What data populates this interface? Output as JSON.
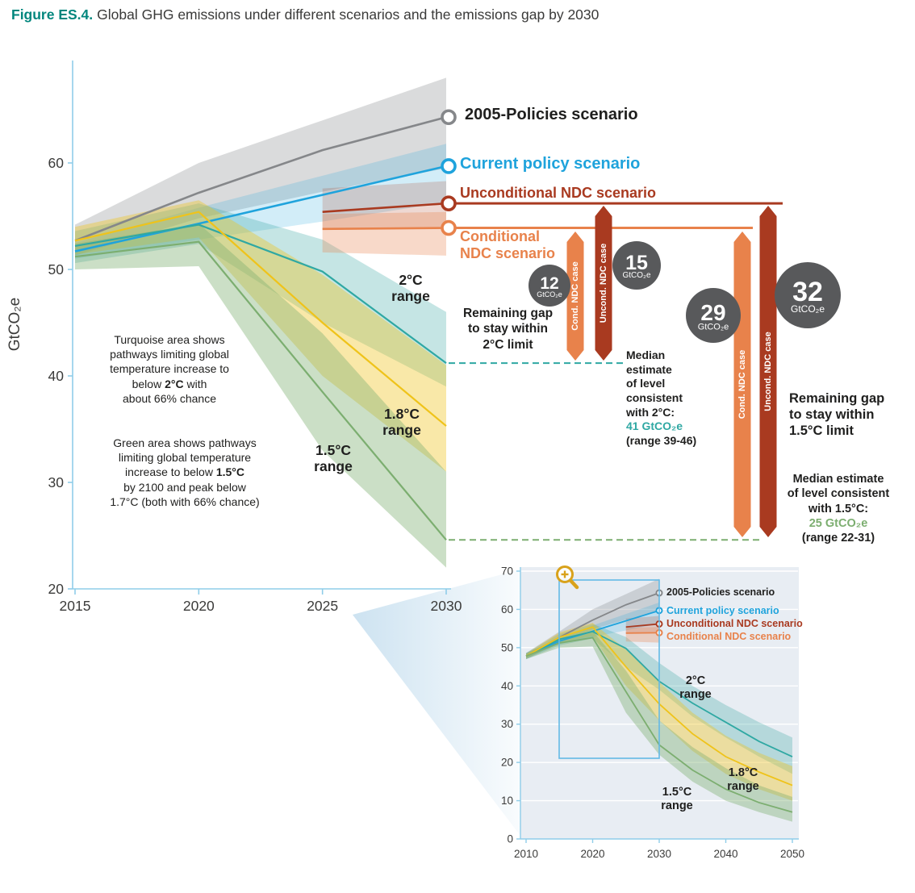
{
  "figure": {
    "label": "Figure ES.4.",
    "title": "Global GHG emissions under different scenarios and the emissions gap by 2030"
  },
  "colors": {
    "teal": "#00867D",
    "text_dark": "#1F1F1E",
    "axis": "#8FCDE9",
    "tick_text": "#3B3B3A",
    "policies2005": "#85878A",
    "current_policy": "#1FA3DC",
    "uncond_ndc": "#A93A20",
    "cond_ndc": "#E8824B",
    "range2c": "#2FA8A3",
    "range18c": "#EFC31A",
    "range15c": "#7CAE70",
    "gap_circle": "#58595B",
    "policies2005_band": "rgba(140,144,146,0.32)",
    "current_policy_band": "rgba(31,163,220,0.20)",
    "uncond_ndc_band": "rgba(169,58,32,0.20)",
    "cond_ndc_band": "rgba(232,130,75,0.30)",
    "range2c_band": "rgba(62,169,164,0.30)",
    "range18c_band": "rgba(239,195,26,0.38)",
    "range15c_band": "rgba(124,174,112,0.40)",
    "inset_bg": "#E8EDF3",
    "zoom_box": "#63B9E6",
    "magnifier": "#D9A21B",
    "beam": "#BCD9EC"
  },
  "scenarios": {
    "s2005": "2005-Policies scenario",
    "current": "Current policy scenario",
    "uncond": "Unconditional NDC scenario",
    "cond": "Conditional NDC scenario"
  },
  "ranges": {
    "r2c": "2°C\nrange",
    "r18c": "1.8°C\nrange",
    "r15c": "1.5°C\nrange"
  },
  "notes": {
    "turquoise_pre": "Turquoise area shows\npathways limiting global\ntemperature increase to\nbelow ",
    "turquoise_bold": "2°C",
    "turquoise_post": " with\nabout 66% chance",
    "green_pre": "Green area shows pathways\nlimiting global temperature\nincrease to below ",
    "green_bold": "1.5°C",
    "green_post": "\nby 2100 and peak below\n1.7°C (both with 66% chance)"
  },
  "gaps": {
    "c2": {
      "heading": "Remaining gap\nto stay within\n2°C limit",
      "cond_value": "12",
      "uncond_value": "15",
      "unit": "GtCO₂e",
      "cond_case": "Cond. NDC case",
      "uncond_case": "Uncond. NDC case",
      "median_text": "Median\nestimate\nof level\nconsistent\nwith 2°C:",
      "median_value": "41 GtCO₂e",
      "median_range": "(range 39-46)"
    },
    "c15": {
      "heading": "Remaining gap\nto stay within\n1.5°C limit",
      "cond_value": "29",
      "uncond_value": "32",
      "unit": "GtCO₂e",
      "cond_case": "Cond. NDC case",
      "uncond_case": "Uncond. NDC case",
      "median_text": "Median estimate\nof level consistent\nwith 1.5°C:",
      "median_value": "25 GtCO₂e",
      "median_range": "(range 22-31)"
    }
  },
  "chart_data": [
    {
      "id": "main",
      "type": "line",
      "title": "Global GHG emissions under different scenarios and the emissions gap by 2030",
      "xlabel": "",
      "ylabel": "GtCO₂e",
      "xlim": [
        2015,
        2030
      ],
      "ylim": [
        20,
        69.6
      ],
      "xticks": [
        2015,
        2020,
        2025,
        2030
      ],
      "yticks": [
        20,
        30,
        40,
        50,
        60
      ],
      "grid": false,
      "series": [
        {
          "key": "policies2005",
          "name": "2005-Policies scenario",
          "x": [
            2015,
            2020,
            2025,
            2030
          ],
          "y": [
            52.7,
            57.2,
            61.2,
            64.3
          ],
          "band_low": [
            51.3,
            54.8,
            57.3,
            59.5
          ],
          "band_high": [
            54.2,
            60.0,
            64.0,
            68.0
          ]
        },
        {
          "key": "current_policy",
          "name": "Current policy scenario",
          "x": [
            2015,
            2020,
            2025,
            2030
          ],
          "y": [
            51.7,
            54.3,
            57.0,
            59.7
          ],
          "band_low": [
            51.0,
            52.8,
            54.5,
            56.3
          ],
          "band_high": [
            52.5,
            55.8,
            58.8,
            61.8
          ]
        },
        {
          "key": "uncond_ndc",
          "name": "Unconditional NDC scenario",
          "x": [
            2025,
            2030
          ],
          "y": [
            55.4,
            56.2
          ],
          "band_low": [
            53.8,
            54.0
          ],
          "band_high": [
            57.6,
            58.3
          ]
        },
        {
          "key": "cond_ndc",
          "name": "Conditional NDC scenario",
          "x": [
            2025,
            2030
          ],
          "y": [
            53.8,
            53.9
          ],
          "band_low": [
            51.6,
            51.3
          ],
          "band_high": [
            55.2,
            55.4
          ]
        },
        {
          "key": "range2c",
          "name": "2°C range",
          "x": [
            2015,
            2020,
            2025,
            2030
          ],
          "y": [
            52.2,
            54.2,
            49.8,
            41.2
          ],
          "band_low": [
            50.6,
            52.4,
            45.0,
            39.0
          ],
          "band_high": [
            53.6,
            56.2,
            52.8,
            46.0
          ]
        },
        {
          "key": "range18c",
          "name": "1.8°C range",
          "x": [
            2015,
            2020,
            2025,
            2030
          ],
          "y": [
            52.7,
            55.4,
            45.0,
            35.3
          ],
          "band_low": [
            51.4,
            53.0,
            40.0,
            31.0
          ],
          "band_high": [
            54.0,
            56.5,
            49.5,
            41.0
          ]
        },
        {
          "key": "range15c",
          "name": "1.5°C range",
          "x": [
            2015,
            2020,
            2025,
            2030
          ],
          "y": [
            51.2,
            52.6,
            38.5,
            24.6
          ],
          "band_low": [
            50.0,
            50.3,
            33.0,
            22.0
          ],
          "band_high": [
            52.4,
            54.3,
            44.0,
            31.0
          ]
        }
      ],
      "gap_guides": [
        {
          "series": "range2c",
          "value": 41.2
        },
        {
          "series": "range15c",
          "value": 24.6
        }
      ]
    },
    {
      "id": "inset",
      "type": "line",
      "title": "",
      "xlabel": "",
      "ylabel": "",
      "xlim": [
        2010,
        2050
      ],
      "ylim": [
        0,
        71
      ],
      "xticks": [
        2010,
        2020,
        2030,
        2040,
        2050
      ],
      "yticks": [
        0,
        10,
        20,
        30,
        40,
        50,
        60,
        70
      ],
      "grid": true,
      "series": [
        {
          "key": "policies2005",
          "name": "2005-Policies scenario",
          "x": [
            2010,
            2015,
            2020,
            2025,
            2030
          ],
          "y": [
            47.8,
            52.7,
            57.2,
            61.2,
            64.3
          ],
          "band_low": [
            47.0,
            51.3,
            54.8,
            57.3,
            59.5
          ],
          "band_high": [
            48.6,
            54.2,
            60.0,
            64.0,
            68.0
          ]
        },
        {
          "key": "current_policy",
          "name": "Current policy scenario",
          "x": [
            2010,
            2015,
            2020,
            2025,
            2030
          ],
          "y": [
            47.8,
            51.7,
            54.3,
            57.0,
            59.7
          ],
          "band_low": [
            47.2,
            51.0,
            52.8,
            54.5,
            56.3
          ],
          "band_high": [
            48.4,
            52.5,
            55.8,
            58.8,
            61.8
          ]
        },
        {
          "key": "uncond_ndc",
          "name": "Unconditional NDC scenario",
          "x": [
            2025,
            2030
          ],
          "y": [
            55.4,
            56.2
          ],
          "band_low": [
            53.8,
            54.0
          ],
          "band_high": [
            57.6,
            58.3
          ]
        },
        {
          "key": "cond_ndc",
          "name": "Conditional NDC scenario",
          "x": [
            2025,
            2030
          ],
          "y": [
            53.8,
            53.9
          ],
          "band_low": [
            51.6,
            51.3
          ],
          "band_high": [
            55.2,
            55.4
          ]
        },
        {
          "key": "range2c",
          "name": "2°C range",
          "x": [
            2010,
            2015,
            2020,
            2025,
            2030,
            2035,
            2040,
            2045,
            2050
          ],
          "y": [
            47.8,
            52.2,
            54.2,
            49.8,
            41.2,
            35.5,
            30.5,
            25.5,
            21.5
          ],
          "band_low": [
            47.0,
            50.6,
            52.4,
            45.0,
            39.0,
            32.0,
            26.5,
            21.5,
            17.0
          ],
          "band_high": [
            48.6,
            53.6,
            56.2,
            52.8,
            46.0,
            40.0,
            35.0,
            30.5,
            26.5
          ]
        },
        {
          "key": "range18c",
          "name": "1.8°C range",
          "x": [
            2010,
            2015,
            2020,
            2025,
            2030,
            2035,
            2040,
            2045,
            2050
          ],
          "y": [
            47.8,
            52.7,
            55.4,
            45.0,
            35.3,
            27.5,
            21.5,
            17.5,
            14.0
          ],
          "band_low": [
            47.2,
            51.4,
            53.0,
            40.0,
            31.0,
            23.0,
            17.0,
            13.0,
            10.0
          ],
          "band_high": [
            48.4,
            54.0,
            56.5,
            49.5,
            41.0,
            33.0,
            27.0,
            22.5,
            19.0
          ]
        },
        {
          "key": "range15c",
          "name": "1.5°C range",
          "x": [
            2010,
            2015,
            2020,
            2025,
            2030,
            2035,
            2040,
            2045,
            2050
          ],
          "y": [
            47.8,
            51.2,
            52.6,
            38.5,
            24.6,
            18.0,
            13.0,
            9.5,
            7.0
          ],
          "band_low": [
            47.0,
            50.0,
            50.3,
            33.0,
            22.0,
            15.0,
            10.0,
            7.0,
            4.5
          ],
          "band_high": [
            48.6,
            52.4,
            54.3,
            44.0,
            31.0,
            24.0,
            18.5,
            14.0,
            11.0
          ]
        }
      ]
    }
  ]
}
